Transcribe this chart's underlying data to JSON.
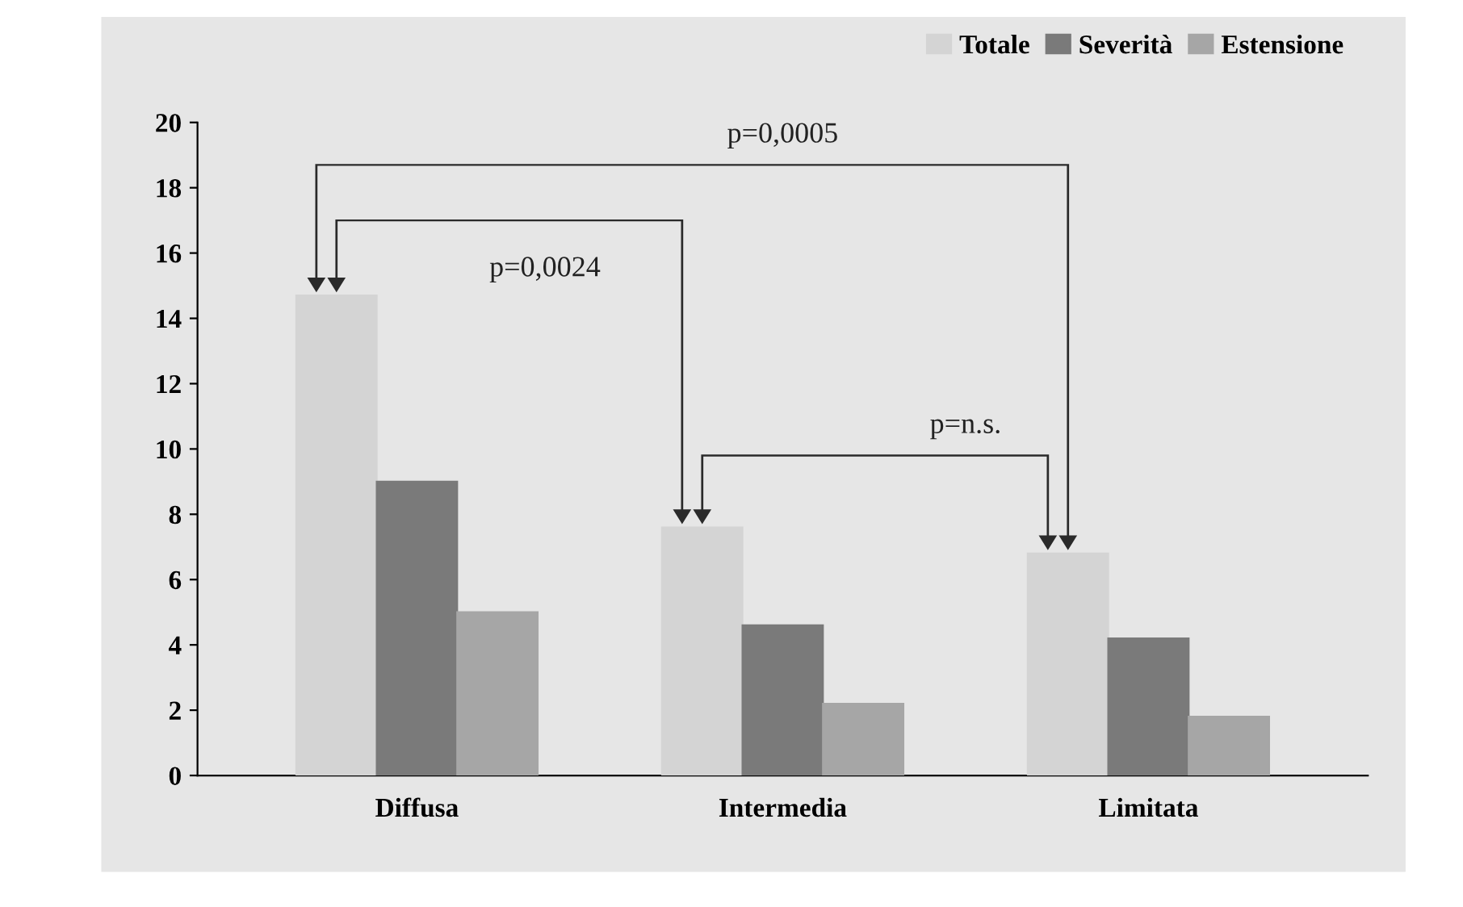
{
  "chart_data": {
    "type": "bar",
    "categories": [
      "Diffusa",
      "Intermedia",
      "Limitata"
    ],
    "series": [
      {
        "name": "Totale",
        "color": "#d4d4d4",
        "values": [
          14.7,
          7.6,
          6.8
        ]
      },
      {
        "name": "Severità",
        "color": "#7a7a7a",
        "values": [
          9.0,
          4.6,
          4.2
        ]
      },
      {
        "name": "Estensione",
        "color": "#a6a6a6",
        "values": [
          5.0,
          2.2,
          1.8
        ]
      }
    ],
    "ylim": [
      0,
      20
    ],
    "yticks": [
      0,
      2,
      4,
      6,
      8,
      10,
      12,
      14,
      16,
      18,
      20
    ],
    "grid": false,
    "legend": "top right",
    "annotations": [
      "p=0,0005",
      "p=0,0024",
      "p=n.s."
    ]
  }
}
